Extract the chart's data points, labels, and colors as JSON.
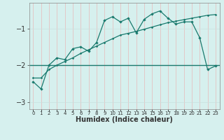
{
  "xlabel": "Humidex (Indice chaleur)",
  "background_color": "#d6f0ee",
  "line_color": "#1a7a6e",
  "x_data": [
    0,
    1,
    2,
    3,
    4,
    5,
    6,
    7,
    8,
    9,
    10,
    11,
    12,
    13,
    14,
    15,
    16,
    17,
    18,
    19,
    20,
    21,
    22,
    23
  ],
  "y_jagged": [
    -2.45,
    -2.65,
    -2.0,
    -1.8,
    -1.85,
    -1.55,
    -1.5,
    -1.62,
    -1.38,
    -0.78,
    -0.68,
    -0.82,
    -0.72,
    -1.12,
    -0.75,
    -0.6,
    -0.52,
    -0.72,
    -0.88,
    -0.82,
    -0.82,
    -1.25,
    -2.12,
    -2.02
  ],
  "y_linear": [
    -2.35,
    -2.35,
    -2.12,
    -2.0,
    -1.9,
    -1.8,
    -1.68,
    -1.58,
    -1.48,
    -1.38,
    -1.28,
    -1.18,
    -1.13,
    -1.08,
    -1.02,
    -0.96,
    -0.9,
    -0.84,
    -0.8,
    -0.76,
    -0.72,
    -0.68,
    -0.64,
    -0.62
  ],
  "y_flat": -2.0,
  "ylim": [
    -3.2,
    -0.3
  ],
  "xlim": [
    -0.5,
    23.5
  ],
  "yticks": [
    -3,
    -2,
    -1
  ],
  "grid_color_vertical": "#e8b8b8",
  "grid_color_horizontal": "#c8e0de"
}
